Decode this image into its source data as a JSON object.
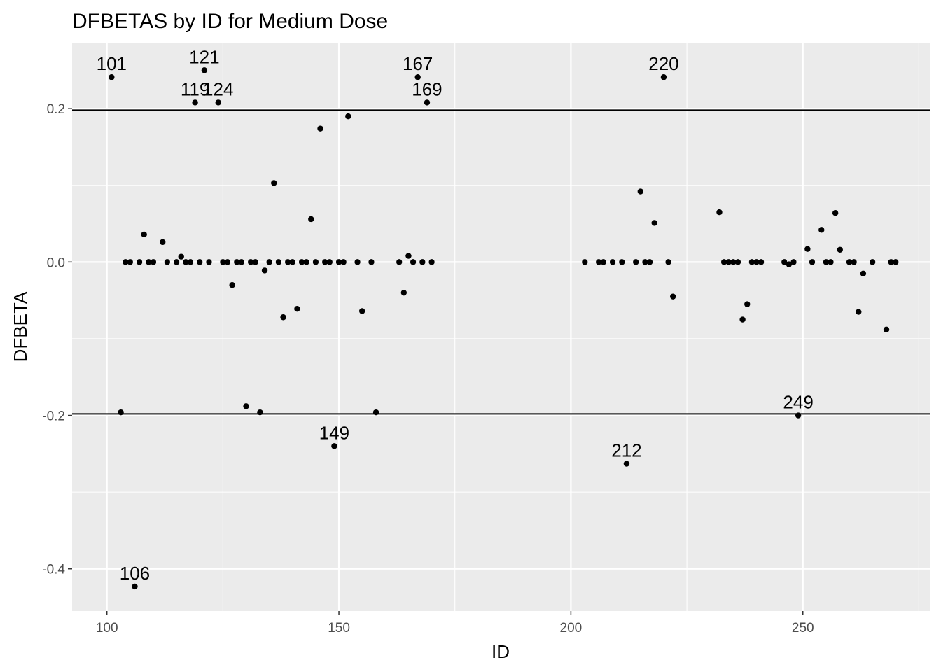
{
  "chart_data": {
    "type": "scatter",
    "title": "DFBETAS by ID for Medium Dose",
    "xlabel": "ID",
    "ylabel": "DFBETA",
    "xlim": [
      92.5,
      277.5
    ],
    "ylim": [
      -0.455,
      0.285
    ],
    "x_ticks": [
      100,
      150,
      200,
      250
    ],
    "x_tick_labels": [
      "100",
      "150",
      "200",
      "250"
    ],
    "y_ticks": [
      -0.4,
      -0.2,
      0.0,
      0.2
    ],
    "y_tick_labels": [
      "-0.4",
      "-0.2",
      "0.0",
      "0.2"
    ],
    "grid": true,
    "hlines": [
      0.198,
      -0.198
    ],
    "points": [
      {
        "x": 101,
        "y": 0.241
      },
      {
        "x": 103,
        "y": -0.196
      },
      {
        "x": 104,
        "y": 0
      },
      {
        "x": 105,
        "y": 0
      },
      {
        "x": 106,
        "y": -0.423
      },
      {
        "x": 107,
        "y": 0
      },
      {
        "x": 108,
        "y": 0.036
      },
      {
        "x": 109,
        "y": 0
      },
      {
        "x": 110,
        "y": 0
      },
      {
        "x": 112,
        "y": 0.026
      },
      {
        "x": 113,
        "y": 0
      },
      {
        "x": 115,
        "y": 0
      },
      {
        "x": 116,
        "y": 0.007
      },
      {
        "x": 117,
        "y": 0
      },
      {
        "x": 118,
        "y": 0
      },
      {
        "x": 119,
        "y": 0.208
      },
      {
        "x": 120,
        "y": 0
      },
      {
        "x": 121,
        "y": 0.25
      },
      {
        "x": 122,
        "y": 0
      },
      {
        "x": 124,
        "y": 0.208
      },
      {
        "x": 125,
        "y": 0
      },
      {
        "x": 126,
        "y": 0
      },
      {
        "x": 127,
        "y": -0.03
      },
      {
        "x": 128,
        "y": 0
      },
      {
        "x": 129,
        "y": 0
      },
      {
        "x": 130,
        "y": -0.188
      },
      {
        "x": 131,
        "y": 0
      },
      {
        "x": 132,
        "y": 0
      },
      {
        "x": 133,
        "y": -0.196
      },
      {
        "x": 134,
        "y": -0.011
      },
      {
        "x": 135,
        "y": 0
      },
      {
        "x": 136,
        "y": 0.103
      },
      {
        "x": 137,
        "y": 0
      },
      {
        "x": 138,
        "y": -0.072
      },
      {
        "x": 139,
        "y": 0
      },
      {
        "x": 140,
        "y": 0
      },
      {
        "x": 141,
        "y": -0.061
      },
      {
        "x": 142,
        "y": 0
      },
      {
        "x": 143,
        "y": 0
      },
      {
        "x": 144,
        "y": 0.056
      },
      {
        "x": 145,
        "y": 0
      },
      {
        "x": 146,
        "y": 0.174
      },
      {
        "x": 147,
        "y": 0
      },
      {
        "x": 148,
        "y": 0
      },
      {
        "x": 149,
        "y": -0.24
      },
      {
        "x": 150,
        "y": 0
      },
      {
        "x": 151,
        "y": 0
      },
      {
        "x": 152,
        "y": 0.19
      },
      {
        "x": 154,
        "y": 0
      },
      {
        "x": 155,
        "y": -0.064
      },
      {
        "x": 157,
        "y": 0
      },
      {
        "x": 158,
        "y": -0.196
      },
      {
        "x": 163,
        "y": 0
      },
      {
        "x": 164,
        "y": -0.04
      },
      {
        "x": 165,
        "y": 0.008
      },
      {
        "x": 166,
        "y": 0
      },
      {
        "x": 167,
        "y": 0.241
      },
      {
        "x": 168,
        "y": 0
      },
      {
        "x": 169,
        "y": 0.208
      },
      {
        "x": 170,
        "y": 0
      },
      {
        "x": 203,
        "y": 0
      },
      {
        "x": 206,
        "y": 0
      },
      {
        "x": 207,
        "y": 0
      },
      {
        "x": 209,
        "y": 0
      },
      {
        "x": 211,
        "y": 0
      },
      {
        "x": 212,
        "y": -0.263
      },
      {
        "x": 214,
        "y": 0
      },
      {
        "x": 215,
        "y": 0.092
      },
      {
        "x": 216,
        "y": 0
      },
      {
        "x": 217,
        "y": 0
      },
      {
        "x": 218,
        "y": 0.051
      },
      {
        "x": 220,
        "y": 0.241
      },
      {
        "x": 221,
        "y": 0
      },
      {
        "x": 222,
        "y": -0.045
      },
      {
        "x": 232,
        "y": 0.065
      },
      {
        "x": 233,
        "y": 0
      },
      {
        "x": 234,
        "y": 0
      },
      {
        "x": 235,
        "y": 0
      },
      {
        "x": 236,
        "y": 0
      },
      {
        "x": 237,
        "y": -0.075
      },
      {
        "x": 238,
        "y": -0.055
      },
      {
        "x": 239,
        "y": 0
      },
      {
        "x": 240,
        "y": 0
      },
      {
        "x": 241,
        "y": 0
      },
      {
        "x": 246,
        "y": 0
      },
      {
        "x": 247,
        "y": -0.003
      },
      {
        "x": 248,
        "y": 0
      },
      {
        "x": 249,
        "y": -0.2
      },
      {
        "x": 251,
        "y": 0.017
      },
      {
        "x": 252,
        "y": 0
      },
      {
        "x": 254,
        "y": 0.042
      },
      {
        "x": 255,
        "y": 0
      },
      {
        "x": 256,
        "y": 0
      },
      {
        "x": 257,
        "y": 0.064
      },
      {
        "x": 258,
        "y": 0.016
      },
      {
        "x": 260,
        "y": 0
      },
      {
        "x": 261,
        "y": 0
      },
      {
        "x": 262,
        "y": -0.065
      },
      {
        "x": 263,
        "y": -0.015
      },
      {
        "x": 265,
        "y": 0
      },
      {
        "x": 268,
        "y": -0.088
      },
      {
        "x": 269,
        "y": 0
      },
      {
        "x": 270,
        "y": 0
      }
    ],
    "labels": [
      {
        "x": 101,
        "y": 0.241,
        "text": "101"
      },
      {
        "x": 106,
        "y": -0.423,
        "text": "106"
      },
      {
        "x": 119,
        "y": 0.208,
        "text": "119"
      },
      {
        "x": 121,
        "y": 0.25,
        "text": "121"
      },
      {
        "x": 124,
        "y": 0.208,
        "text": "124"
      },
      {
        "x": 149,
        "y": -0.24,
        "text": "149"
      },
      {
        "x": 167,
        "y": 0.241,
        "text": "167"
      },
      {
        "x": 169,
        "y": 0.208,
        "text": "169"
      },
      {
        "x": 212,
        "y": -0.263,
        "text": "212"
      },
      {
        "x": 220,
        "y": 0.241,
        "text": "220"
      },
      {
        "x": 249,
        "y": -0.2,
        "text": "249"
      }
    ],
    "colors": {
      "panel": "#ebebeb",
      "grid_major": "#ffffff",
      "point": "#000000",
      "hline": "#000000",
      "tick": "#333333"
    }
  }
}
